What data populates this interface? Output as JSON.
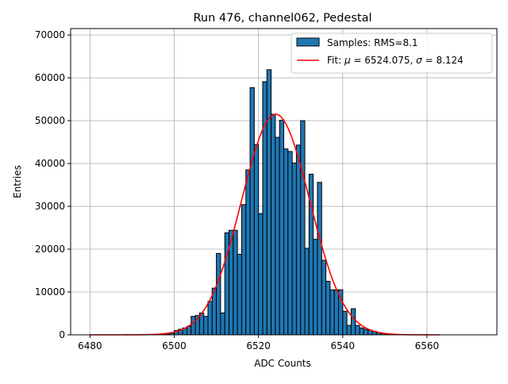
{
  "chart_data": {
    "type": "bar",
    "title": "Run 476, channel062, Pedestal",
    "xlabel": "ADC Counts",
    "ylabel": "Entries",
    "xlim": [
      6475.4,
      6576.6
    ],
    "ylim": [
      0,
      71500
    ],
    "xticks": [
      6480,
      6500,
      6520,
      6540,
      6560
    ],
    "yticks": [
      0,
      10000,
      20000,
      30000,
      40000,
      50000,
      60000,
      70000
    ],
    "grid": true,
    "legend_position": "top-right",
    "bar_color": "#1f77b4",
    "fit_color": "#ff0000",
    "histogram": {
      "name": "Samples: RMS=8.1",
      "bin_width": 1,
      "bin_edges_start": [
        6497,
        6498,
        6499,
        6500,
        6501,
        6502,
        6503,
        6504,
        6505,
        6506,
        6507,
        6508,
        6509,
        6510,
        6511,
        6512,
        6513,
        6514,
        6515,
        6516,
        6517,
        6518,
        6519,
        6520,
        6521,
        6522,
        6523,
        6524,
        6525,
        6526,
        6527,
        6528,
        6529,
        6530,
        6531,
        6532,
        6533,
        6534,
        6535,
        6536,
        6537,
        6538,
        6539,
        6540,
        6541,
        6542,
        6543,
        6544,
        6545,
        6546,
        6547,
        6548,
        6549,
        6550,
        6551
      ],
      "counts": [
        100,
        200,
        400,
        1000,
        1300,
        1600,
        2000,
        4300,
        4500,
        5100,
        4300,
        7800,
        10900,
        19000,
        5100,
        23800,
        24400,
        24400,
        18800,
        30400,
        38500,
        57700,
        44400,
        28300,
        59100,
        61900,
        51500,
        46100,
        50100,
        43400,
        42800,
        40100,
        44300,
        50000,
        20200,
        37500,
        22300,
        35600,
        17400,
        12500,
        10500,
        10500,
        10500,
        5500,
        2200,
        6100,
        2200,
        1600,
        1300,
        1100,
        800,
        500,
        300,
        200,
        100
      ]
    },
    "fit": {
      "name": "Fit: μ = 6524.075, σ = 8.124",
      "name_parts": {
        "prefix": "Fit: ",
        "mu_symbol": "μ",
        "mu_text": " = 6524.075, ",
        "sigma_symbol": "σ",
        "sigma_text": " = 8.124"
      },
      "mu": 6524.075,
      "sigma": 8.124,
      "amplitude": 51500,
      "x_range": [
        6480,
        6563
      ]
    }
  }
}
